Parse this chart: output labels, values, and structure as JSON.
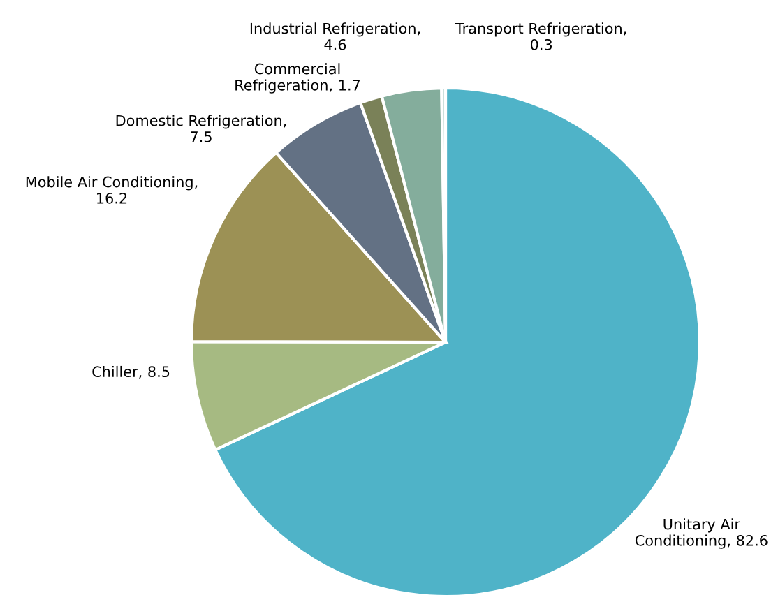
{
  "chart_data": {
    "type": "pie",
    "categories": [
      "Unitary Air\nConditioning, 82.6",
      "Chiller, 8.5",
      "Mobile Air Conditioning,\n16.2",
      "Domestic Refrigeration,\n7.5",
      "Commercial\nRefrigeration, 1.7",
      "Industrial Refrigeration,\n4.6",
      "Transport Refrigeration,\n0.3"
    ],
    "values": [
      82.6,
      8.5,
      16.2,
      7.5,
      1.7,
      4.6,
      0.3
    ],
    "colors": [
      "#4fb3c8",
      "#a6ba82",
      "#9c9155",
      "#637184",
      "#7a8158",
      "#84ad9c",
      "#c8dcd8"
    ]
  }
}
